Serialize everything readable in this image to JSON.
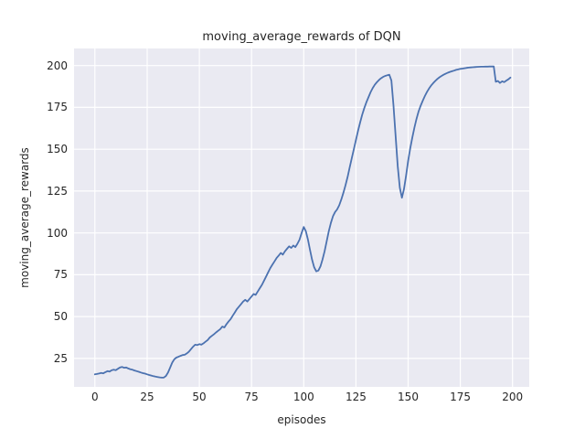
{
  "figure": {
    "title": "moving_average_rewards of DQN",
    "xlabel": "episodes",
    "ylabel": "moving_average_rewards"
  },
  "colors": {
    "line": "#4C72B0",
    "axes_background": "#EAEAF2",
    "grid": "#ffffff",
    "text": "#262626",
    "figure_background": "#ffffff"
  },
  "chart_data": {
    "type": "line",
    "title": "moving_average_rewards of DQN",
    "xlabel": "episodes",
    "ylabel": "moving_average_rewards",
    "xlim": [
      -10,
      208
    ],
    "ylim": [
      8,
      210.2
    ],
    "x_ticks": [
      0,
      25,
      50,
      75,
      100,
      125,
      150,
      175,
      200
    ],
    "y_ticks": [
      25,
      50,
      75,
      100,
      125,
      150,
      175,
      200
    ],
    "grid": true,
    "legend": false,
    "line_color": "#4C72B0",
    "series": [
      {
        "name": "moving_average_rewards",
        "x_start": 0,
        "x_step": 1,
        "y": [
          15.5,
          15.7,
          16.0,
          16.3,
          16.1,
          16.8,
          17.4,
          17.1,
          17.9,
          18.3,
          18.0,
          18.8,
          19.6,
          19.9,
          19.4,
          19.6,
          19.0,
          18.5,
          18.2,
          17.8,
          17.4,
          17.0,
          16.6,
          16.2,
          15.9,
          15.5,
          15.1,
          14.8,
          14.4,
          14.1,
          13.9,
          13.7,
          13.5,
          13.6,
          14.5,
          16.5,
          19.5,
          22.5,
          24.5,
          25.5,
          26.0,
          26.5,
          27.0,
          27.2,
          28.0,
          29.0,
          30.5,
          32.0,
          33.2,
          33.0,
          33.5,
          33.2,
          34.0,
          35.0,
          36.0,
          37.5,
          38.5,
          39.5,
          40.5,
          41.5,
          42.5,
          44.0,
          43.5,
          45.5,
          47.0,
          48.5,
          50.5,
          52.5,
          54.5,
          56.0,
          57.5,
          59.0,
          60.0,
          59.0,
          60.5,
          62.0,
          63.5,
          63.0,
          65.0,
          67.0,
          69.0,
          71.5,
          74.0,
          76.5,
          79.0,
          81.0,
          83.0,
          85.0,
          86.5,
          88.0,
          87.0,
          89.0,
          90.5,
          92.0,
          91.0,
          92.5,
          91.5,
          93.5,
          96.0,
          100.0,
          103.5,
          101.0,
          96.0,
          90.0,
          84.0,
          79.5,
          77.0,
          77.5,
          80.0,
          84.0,
          89.0,
          95.0,
          101.0,
          106.0,
          110.0,
          112.5,
          114.0,
          116.5,
          120.0,
          124.0,
          128.5,
          133.5,
          139.0,
          144.5,
          150.0,
          155.5,
          161.0,
          166.0,
          170.5,
          174.5,
          178.0,
          181.0,
          184.0,
          186.5,
          188.5,
          190.0,
          191.3,
          192.4,
          193.2,
          193.8,
          194.2,
          194.5,
          191.0,
          176.0,
          158.0,
          140.0,
          127.0,
          121.0,
          126.0,
          134.0,
          143.0,
          150.5,
          157.0,
          163.0,
          168.0,
          172.5,
          176.0,
          179.0,
          181.8,
          184.2,
          186.2,
          188.0,
          189.5,
          190.8,
          192.0,
          193.0,
          193.8,
          194.5,
          195.1,
          195.7,
          196.2,
          196.6,
          197.0,
          197.4,
          197.7,
          198.0,
          198.2,
          198.4,
          198.6,
          198.8,
          198.9,
          199.0,
          199.1,
          199.2,
          199.25,
          199.3,
          199.35,
          199.4,
          199.4,
          199.45,
          199.45,
          199.45,
          190.3,
          190.8,
          189.6,
          190.6,
          190.1,
          191.0,
          191.8,
          192.8
        ]
      }
    ]
  }
}
